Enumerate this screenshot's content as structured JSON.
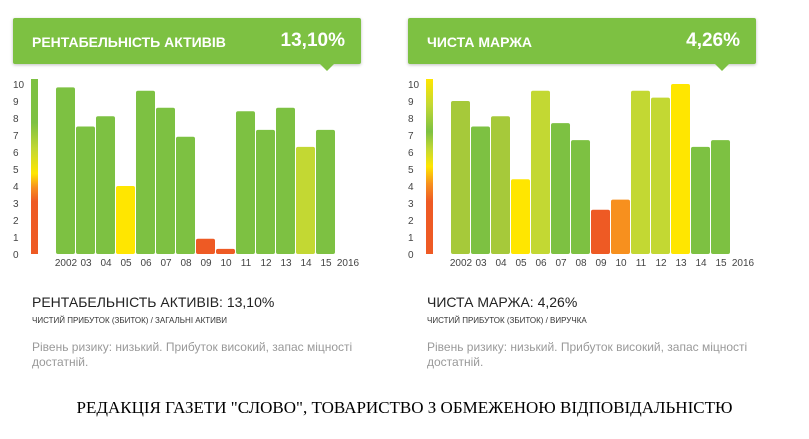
{
  "cards": [
    {
      "title": "РЕНТАБЕЛЬНІСТЬ АКТИВІВ",
      "value": "13,10%",
      "subtitle": "РЕНТАБЕЛЬНІСТЬ АКТИВІВ: 13,10%",
      "formula": "ЧИСТИЙ ПРИБУТОК (ЗБИТОК) / ЗАГАЛЬНІ АКТИВИ",
      "risk": "Рівень ризику: низький. Прибуток високий, запас міцності достатній."
    },
    {
      "title": "ЧИСТА МАРЖА",
      "value": "4,26%",
      "subtitle": "ЧИСТА МАРЖА: 4,26%",
      "formula": "ЧИСТИЙ ПРИБУТОК (ЗБИТОК) / ВИРУЧКА",
      "risk": "Рівень ризику: низький. Прибуток високий, запас міцності достатній."
    }
  ],
  "footer": "РЕДАКЦІЯ ГАЗЕТИ \"СЛОВО\", ТОВАРИСТВО З ОБМЕЖЕНОЮ ВІДПОВІДАЛЬНІСТЮ",
  "colors": {
    "green": "#7dc142",
    "lightgreen": "#a6c93a",
    "yellowgreen": "#c3d833",
    "yellow": "#ffe600",
    "orange": "#f7901e",
    "red": "#ee5a24"
  },
  "chart_data": [
    {
      "type": "bar",
      "title": "РЕНТАБЕЛЬНІСТЬ АКТИВІВ",
      "categories": [
        "2002",
        "03",
        "04",
        "05",
        "06",
        "07",
        "08",
        "09",
        "10",
        "11",
        "12",
        "13",
        "14",
        "15"
      ],
      "end_label": "2016",
      "yticks": [
        "0",
        "1",
        "2",
        "3",
        "4",
        "5",
        "6",
        "7",
        "8",
        "9",
        "10"
      ],
      "ylim": [
        0,
        10
      ],
      "values": [
        9.8,
        7.5,
        8.1,
        4.0,
        9.6,
        8.6,
        6.9,
        0.9,
        0.3,
        8.4,
        7.3,
        8.6,
        6.3,
        7.3
      ],
      "bar_colors": [
        "green",
        "green",
        "green",
        "yellow",
        "green",
        "green",
        "green",
        "red",
        "red",
        "green",
        "green",
        "green",
        "yellowgreen",
        "green"
      ],
      "scale": "green-top"
    },
    {
      "type": "bar",
      "title": "ЧИСТА МАРЖА",
      "categories": [
        "2002",
        "03",
        "04",
        "05",
        "06",
        "07",
        "08",
        "09",
        "10",
        "11",
        "12",
        "13",
        "14",
        "15"
      ],
      "end_label": "2016",
      "yticks": [
        "0",
        "1",
        "2",
        "3",
        "4",
        "5",
        "6",
        "7",
        "8",
        "9",
        "10"
      ],
      "ylim": [
        0,
        10
      ],
      "values": [
        9.0,
        7.5,
        8.1,
        4.4,
        9.6,
        7.7,
        6.7,
        2.6,
        3.2,
        9.6,
        9.2,
        10.0,
        6.3,
        6.7
      ],
      "bar_colors": [
        "lightgreen",
        "green",
        "lightgreen",
        "yellow",
        "yellowgreen",
        "green",
        "green",
        "red",
        "orange",
        "yellowgreen",
        "yellowgreen",
        "yellow",
        "green",
        "green"
      ],
      "scale": "yellow-top"
    }
  ]
}
